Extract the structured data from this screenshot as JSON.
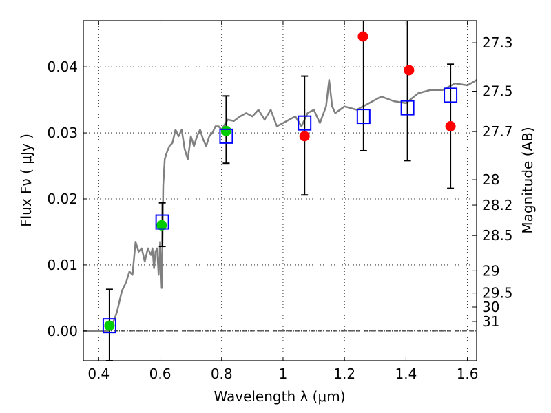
{
  "chart_data": {
    "type": "scatter",
    "xlabel": "Wavelength  λ (μm)",
    "ylabel": "Flux  Fν  ( μJy )",
    "y2label": "Magnitude (AB)",
    "xlim": [
      0.35,
      1.63
    ],
    "ylim": [
      -0.0045,
      0.047
    ],
    "grid": true,
    "x_ticks": [
      {
        "value": 0.4,
        "label": "0.4"
      },
      {
        "value": 0.6,
        "label": "0.6"
      },
      {
        "value": 0.8,
        "label": "0.8"
      },
      {
        "value": 1.0,
        "label": "1"
      },
      {
        "value": 1.2,
        "label": "1.2"
      },
      {
        "value": 1.4,
        "label": "1.4"
      },
      {
        "value": 1.6,
        "label": "1.6"
      }
    ],
    "y_ticks": [
      {
        "value": 0.0,
        "label": "0.00"
      },
      {
        "value": 0.01,
        "label": "0.01"
      },
      {
        "value": 0.02,
        "label": "0.02"
      },
      {
        "value": 0.03,
        "label": "0.03"
      },
      {
        "value": 0.04,
        "label": "0.04"
      }
    ],
    "y2_ticks": [
      {
        "value": 27.3,
        "label": "27.3"
      },
      {
        "value": 27.5,
        "label": "27.5"
      },
      {
        "value": 27.7,
        "label": "27.7"
      },
      {
        "value": 28.0,
        "label": "28"
      },
      {
        "value": 28.2,
        "label": "28.2"
      },
      {
        "value": 28.5,
        "label": "28.5"
      },
      {
        "value": 29.0,
        "label": "29"
      },
      {
        "value": 29.5,
        "label": "29.5"
      },
      {
        "value": 30.0,
        "label": "30"
      },
      {
        "value": 31.0,
        "label": "31"
      }
    ],
    "colors": {
      "model": "#808080",
      "green": "#00cc00",
      "red": "#ff0000",
      "square": "#0000ff",
      "errorbar": "#000000",
      "zero_line": "#000000"
    },
    "model_spectrum": {
      "name": "",
      "x": [
        0.35,
        0.43,
        0.445,
        0.46,
        0.475,
        0.49,
        0.5,
        0.51,
        0.52,
        0.53,
        0.54,
        0.55,
        0.56,
        0.57,
        0.575,
        0.58,
        0.585,
        0.59,
        0.595,
        0.6,
        0.603,
        0.605,
        0.608,
        0.61,
        0.615,
        0.62,
        0.63,
        0.64,
        0.65,
        0.66,
        0.67,
        0.68,
        0.69,
        0.7,
        0.71,
        0.72,
        0.73,
        0.74,
        0.75,
        0.76,
        0.77,
        0.78,
        0.79,
        0.8,
        0.82,
        0.84,
        0.86,
        0.88,
        0.9,
        0.92,
        0.94,
        0.96,
        0.98,
        1.0,
        1.02,
        1.04,
        1.06,
        1.08,
        1.1,
        1.12,
        1.14,
        1.15,
        1.16,
        1.17,
        1.2,
        1.24,
        1.28,
        1.32,
        1.36,
        1.4,
        1.44,
        1.48,
        1.52,
        1.56,
        1.6,
        1.63
      ],
      "y": [
        0.0,
        0.0,
        0.001,
        0.003,
        0.006,
        0.0075,
        0.009,
        0.0085,
        0.0135,
        0.012,
        0.0125,
        0.0105,
        0.0125,
        0.0115,
        0.0125,
        0.0095,
        0.012,
        0.0125,
        0.0085,
        0.0135,
        0.009,
        0.0065,
        0.0145,
        0.022,
        0.026,
        0.0268,
        0.028,
        0.0285,
        0.0305,
        0.0295,
        0.0305,
        0.0275,
        0.026,
        0.0295,
        0.028,
        0.0295,
        0.0305,
        0.029,
        0.028,
        0.0295,
        0.03,
        0.031,
        0.031,
        0.0305,
        0.032,
        0.0318,
        0.0325,
        0.033,
        0.0325,
        0.0335,
        0.032,
        0.0335,
        0.031,
        0.0315,
        0.032,
        0.0325,
        0.031,
        0.033,
        0.0335,
        0.0315,
        0.034,
        0.038,
        0.034,
        0.033,
        0.034,
        0.0335,
        0.0345,
        0.0355,
        0.0348,
        0.0345,
        0.036,
        0.0365,
        0.0365,
        0.0375,
        0.0372,
        0.038
      ]
    },
    "green_points": {
      "name": "",
      "x": [
        0.435,
        0.605,
        0.815
      ],
      "y": [
        0.0008,
        0.016,
        0.0303
      ]
    },
    "red_points": {
      "name": "",
      "x": [
        1.07,
        1.26,
        1.41,
        1.545
      ],
      "y": [
        0.0295,
        0.0446,
        0.0395,
        0.031
      ]
    },
    "square_points": {
      "name": "",
      "x": [
        0.435,
        0.607,
        0.815,
        1.07,
        1.262,
        1.405,
        1.545
      ],
      "y": [
        0.0008,
        0.0165,
        0.0295,
        0.0315,
        0.0325,
        0.0338,
        0.0357
      ]
    },
    "error_bars": [
      {
        "x": 0.435,
        "y_low": -0.0045,
        "y_high": 0.0063
      },
      {
        "x": 0.607,
        "y_low": 0.0128,
        "y_high": 0.0194
      },
      {
        "x": 0.815,
        "y_low": 0.0254,
        "y_high": 0.0356
      },
      {
        "x": 1.07,
        "y_low": 0.0206,
        "y_high": 0.0386
      },
      {
        "x": 1.262,
        "y_low": 0.0273,
        "y_high": 0.047
      },
      {
        "x": 1.405,
        "y_low": 0.0258,
        "y_high": 0.047
      },
      {
        "x": 1.545,
        "y_low": 0.0216,
        "y_high": 0.0404
      }
    ]
  }
}
